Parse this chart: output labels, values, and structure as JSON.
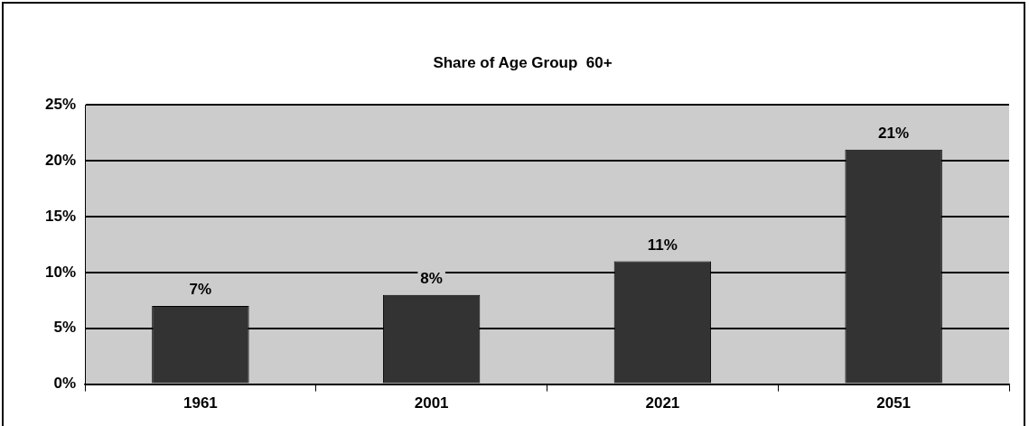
{
  "chart_data": {
    "type": "bar",
    "title": "Share of Age Group  60+",
    "categories": [
      "1961",
      "2001",
      "2021",
      "2051"
    ],
    "values": [
      7,
      8,
      11,
      21
    ],
    "value_labels": [
      "7%",
      "8%",
      "11%",
      "21%"
    ],
    "color": "#333333",
    "ylim": [
      0,
      25
    ],
    "yticks": [
      {
        "value": 0,
        "label": "0%"
      },
      {
        "value": 5,
        "label": "5%"
      },
      {
        "value": 10,
        "label": "10%"
      },
      {
        "value": 15,
        "label": "15%"
      },
      {
        "value": 20,
        "label": "20%"
      },
      {
        "value": 25,
        "label": "25%"
      }
    ],
    "grid": "y"
  }
}
